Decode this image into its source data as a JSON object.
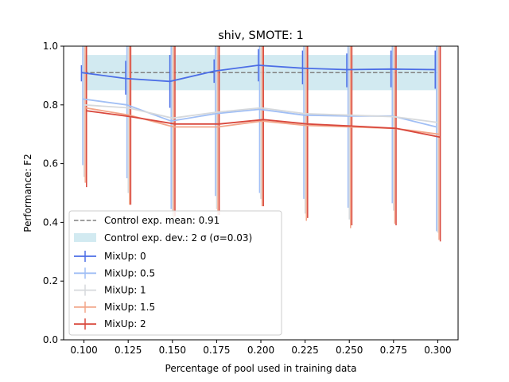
{
  "chart_data": {
    "type": "line",
    "title": "shiv, SMOTE: 1",
    "xlabel": "Percentage of pool used in training data",
    "ylabel": "Performance: F2",
    "x": [
      0.1,
      0.125,
      0.15,
      0.175,
      0.2,
      0.225,
      0.25,
      0.275,
      0.3
    ],
    "x_tick_labels": [
      "0.100",
      "0.125",
      "0.150",
      "0.175",
      "0.200",
      "0.225",
      "0.250",
      "0.275",
      "0.300"
    ],
    "y_ticks": [
      0.0,
      0.2,
      0.4,
      0.6,
      0.8,
      1.0
    ],
    "y_tick_labels": [
      "0.0",
      "0.2",
      "0.4",
      "0.6",
      "0.8",
      "1.0"
    ],
    "xlim": [
      0.0885,
      0.3115
    ],
    "ylim": [
      0.0,
      1.0
    ],
    "grid": false,
    "legend_position": "lower-left",
    "control": {
      "mean": 0.91,
      "dev": 0.03,
      "mean_label": "Control exp. mean: 0.91",
      "dev_label": "Control exp. dev.: 2 σ (σ=0.03)",
      "mean_color": "#808080",
      "band_color": "#add8e6"
    },
    "series": [
      {
        "name": "MixUp: 0",
        "label": "MixUp: 0",
        "color": "#4c6ee6",
        "values": [
          0.91,
          0.89,
          0.88,
          0.915,
          0.935,
          0.925,
          0.92,
          0.922,
          0.92
        ],
        "err_low": [
          0.88,
          0.835,
          0.79,
          0.875,
          0.88,
          0.87,
          0.86,
          0.86,
          0.855
        ],
        "err_high": [
          0.935,
          0.95,
          0.97,
          0.955,
          0.99,
          0.985,
          0.975,
          0.985,
          0.985
        ]
      },
      {
        "name": "MixUp: 0.5",
        "label": "MixUp: 0.5",
        "color": "#a1bff5",
        "values": [
          0.82,
          0.8,
          0.745,
          0.77,
          0.785,
          0.765,
          0.762,
          0.762,
          0.725
        ],
        "err_low": [
          0.595,
          0.55,
          0.445,
          0.49,
          0.5,
          0.48,
          0.45,
          0.465,
          0.37
        ],
        "err_high": [
          1.0,
          1.0,
          1.0,
          1.0,
          1.0,
          1.0,
          1.0,
          1.0,
          1.0
        ]
      },
      {
        "name": "MixUp: 1",
        "label": "MixUp: 1",
        "color": "#d6d9dc",
        "values": [
          0.8,
          0.79,
          0.755,
          0.775,
          0.79,
          0.77,
          0.765,
          0.76,
          0.74
        ],
        "err_low": [
          0.555,
          0.5,
          0.42,
          0.445,
          0.48,
          0.43,
          0.41,
          0.44,
          0.365
        ],
        "err_high": [
          1.0,
          1.0,
          1.0,
          1.0,
          1.0,
          1.0,
          1.0,
          1.0,
          1.0
        ]
      },
      {
        "name": "MixUp: 1.5",
        "label": "MixUp: 1.5",
        "color": "#f2a589",
        "values": [
          0.79,
          0.765,
          0.725,
          0.725,
          0.745,
          0.73,
          0.725,
          0.72,
          0.7
        ],
        "err_low": [
          0.535,
          0.46,
          0.415,
          0.425,
          0.455,
          0.405,
          0.38,
          0.395,
          0.34
        ],
        "err_high": [
          1.0,
          1.0,
          1.0,
          1.0,
          1.0,
          1.0,
          1.0,
          1.0,
          1.0
        ]
      },
      {
        "name": "MixUp: 2",
        "label": "MixUp: 2",
        "color": "#d9483d",
        "values": [
          0.78,
          0.76,
          0.735,
          0.735,
          0.75,
          0.735,
          0.728,
          0.72,
          0.69
        ],
        "err_low": [
          0.52,
          0.46,
          0.42,
          0.425,
          0.455,
          0.415,
          0.39,
          0.39,
          0.335
        ],
        "err_high": [
          1.0,
          1.0,
          1.0,
          1.0,
          1.0,
          1.0,
          1.0,
          1.0,
          1.0
        ]
      }
    ]
  }
}
